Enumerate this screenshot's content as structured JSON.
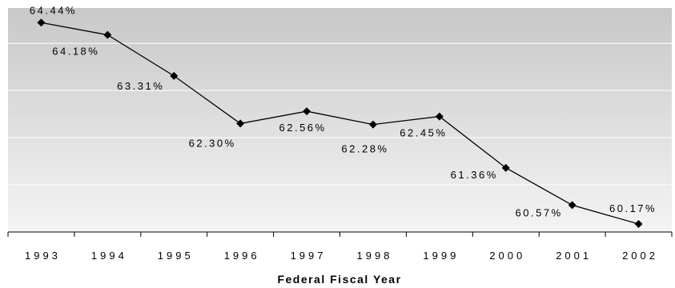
{
  "chart_data": {
    "type": "line",
    "title": "",
    "xlabel": "Federal Fiscal Year",
    "ylabel": "",
    "categories": [
      "1993",
      "1994",
      "1995",
      "1996",
      "1997",
      "1998",
      "1999",
      "2000",
      "2001",
      "2002"
    ],
    "series": [
      {
        "values": [
          64.44,
          64.18,
          63.31,
          62.3,
          62.56,
          62.28,
          62.45,
          61.36,
          60.57,
          60.17
        ],
        "data_labels": [
          "64.44%",
          "64.18%",
          "63.31%",
          "62.30%",
          "62.56%",
          "62.28%",
          "62.45%",
          "61.36%",
          "60.57%",
          "60.17%"
        ]
      }
    ],
    "ylim": [
      60.0,
      64.75
    ],
    "grid": true,
    "legend": "none",
    "marker": "diamond",
    "line_color": "#000000",
    "plot_background": "gradient gray",
    "colors": {
      "plot_top": "#c8c8c8",
      "plot_bottom": "#f4f4f4",
      "gridline": "#ffffff",
      "line": "#000000"
    }
  }
}
